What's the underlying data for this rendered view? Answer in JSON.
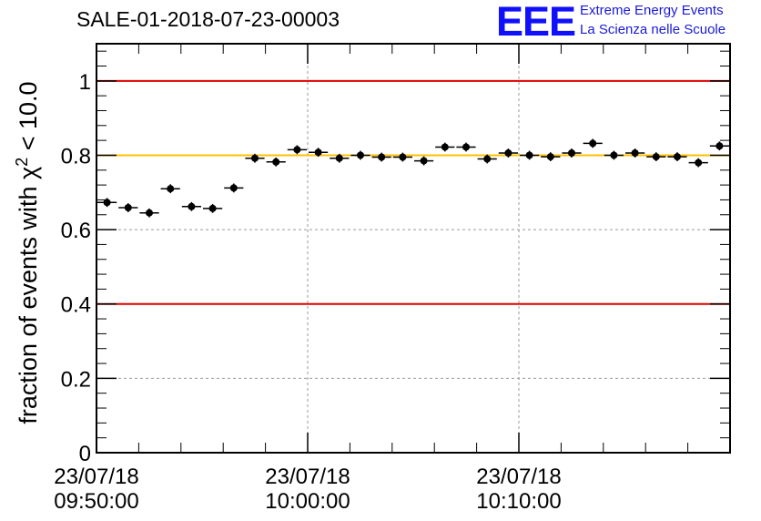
{
  "logo": {
    "text": "EEE",
    "line1": "Extreme Energy Events",
    "line2": "La Scienza nelle Scuole",
    "color": "#1010ff"
  },
  "chart_data": {
    "type": "scatter",
    "title": "SALE-01-2018-07-23-00003",
    "ylabel_main": "fraction of events with χ",
    "ylabel_sup": "2",
    "ylabel_tail": " < 10.0",
    "ylim": [
      0,
      1.1
    ],
    "yticks": [
      0,
      0.2,
      0.4,
      0.6,
      0.8,
      1
    ],
    "ytick_labels": [
      "0",
      "0.2",
      "0.4",
      "0.6",
      "0.8",
      "1"
    ],
    "xlim": [
      "09:50:00",
      "10:20:00"
    ],
    "xticks": [
      {
        "x": "09:50:00",
        "line1": "23/07/18",
        "line2": "09:50:00"
      },
      {
        "x": "10:00:00",
        "line1": "23/07/18",
        "line2": "10:00:00"
      },
      {
        "x": "10:10:00",
        "line1": "23/07/18",
        "line2": "10:10:00"
      }
    ],
    "grid": true,
    "reference_lines": [
      {
        "y": 1.0,
        "color": "#e00000"
      },
      {
        "y": 0.8,
        "color": "#ffc000"
      },
      {
        "y": 0.4,
        "color": "#e00000"
      }
    ],
    "bin_width_minutes": 1,
    "points": [
      {
        "x": "09:50:30",
        "y": 0.673
      },
      {
        "x": "09:51:30",
        "y": 0.659
      },
      {
        "x": "09:52:30",
        "y": 0.645
      },
      {
        "x": "09:53:30",
        "y": 0.71
      },
      {
        "x": "09:54:30",
        "y": 0.662
      },
      {
        "x": "09:55:30",
        "y": 0.657
      },
      {
        "x": "09:56:30",
        "y": 0.712
      },
      {
        "x": "09:57:30",
        "y": 0.792
      },
      {
        "x": "09:58:30",
        "y": 0.782
      },
      {
        "x": "09:59:30",
        "y": 0.815
      },
      {
        "x": "10:00:30",
        "y": 0.808
      },
      {
        "x": "10:01:30",
        "y": 0.792
      },
      {
        "x": "10:02:30",
        "y": 0.8
      },
      {
        "x": "10:03:30",
        "y": 0.795
      },
      {
        "x": "10:04:30",
        "y": 0.795
      },
      {
        "x": "10:05:30",
        "y": 0.785
      },
      {
        "x": "10:06:30",
        "y": 0.822
      },
      {
        "x": "10:07:30",
        "y": 0.822
      },
      {
        "x": "10:08:30",
        "y": 0.79
      },
      {
        "x": "10:09:30",
        "y": 0.806
      },
      {
        "x": "10:10:30",
        "y": 0.8
      },
      {
        "x": "10:11:30",
        "y": 0.796
      },
      {
        "x": "10:12:30",
        "y": 0.806
      },
      {
        "x": "10:13:30",
        "y": 0.832
      },
      {
        "x": "10:14:30",
        "y": 0.8
      },
      {
        "x": "10:15:30",
        "y": 0.806
      },
      {
        "x": "10:16:30",
        "y": 0.796
      },
      {
        "x": "10:17:30",
        "y": 0.796
      },
      {
        "x": "10:18:30",
        "y": 0.78
      },
      {
        "x": "10:19:30",
        "y": 0.825
      }
    ],
    "y_error": 0.012
  }
}
